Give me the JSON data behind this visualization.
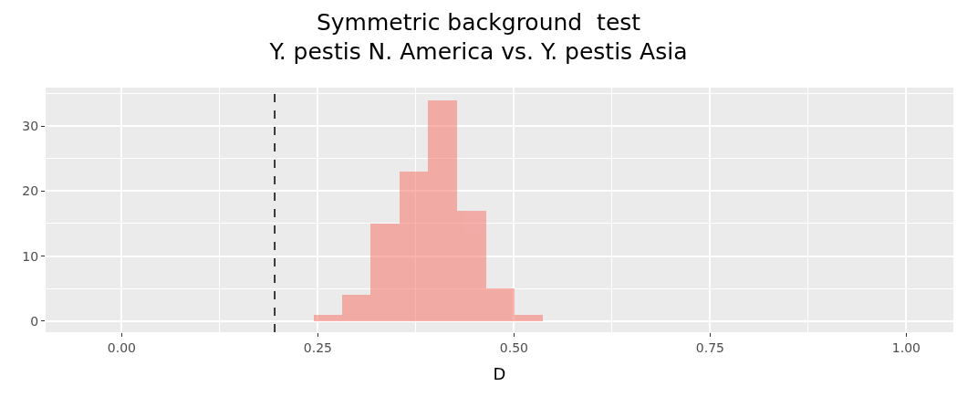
{
  "chart_data": {
    "type": "histogram",
    "title": "Symmetric background  test\nY. pestis N. America vs. Y. pestis Asia",
    "xlabel": "D",
    "bins": [
      0.245,
      0.281,
      0.317,
      0.354,
      0.39,
      0.428,
      0.465,
      0.501,
      0.537
    ],
    "values": [
      1,
      4,
      15,
      23,
      34,
      17,
      5,
      1
    ],
    "color": "#f8766d",
    "xlim": [
      -0.097,
      1.06
    ],
    "xticks": [
      {
        "value": 0,
        "label": "0.00"
      },
      0.25,
      {
        "value": 0.5,
        "label": "0.50"
      },
      0.75,
      {
        "value": 1,
        "label": "1.00"
      }
    ],
    "ylim": [
      -1.7,
      35.9
    ],
    "yticks": [
      0,
      10,
      20,
      30
    ],
    "ref_lines": [
      {
        "axis": "x",
        "value": 0.195,
        "color": "#000000",
        "line_style": "dashed"
      }
    ],
    "grid": true
  }
}
